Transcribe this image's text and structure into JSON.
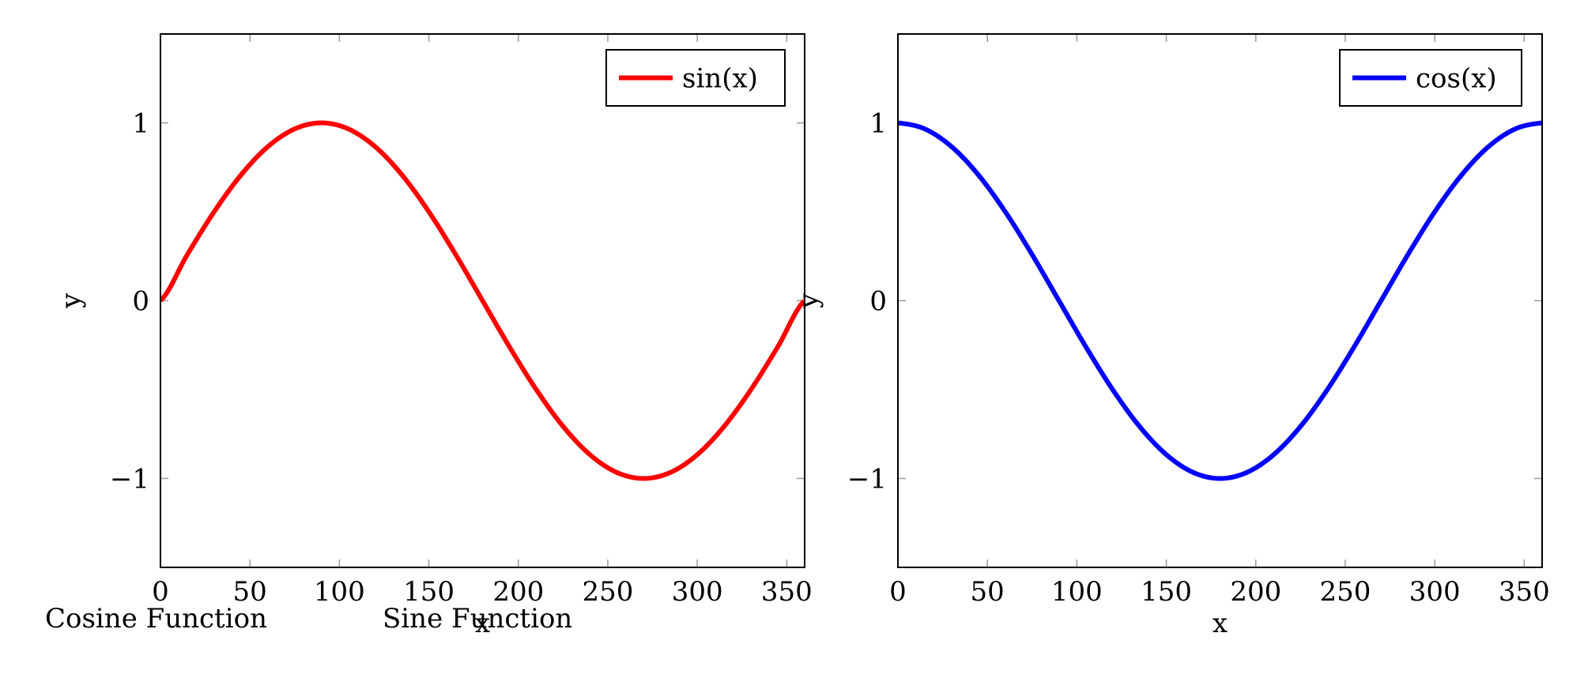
{
  "figure": {
    "captions": [
      "Cosine Function",
      "Sine Function"
    ]
  },
  "chart_data": [
    {
      "type": "line",
      "xlabel": "x",
      "ylabel": "y",
      "xlim": [
        0,
        360
      ],
      "ylim": [
        -1.5,
        1.5
      ],
      "xticks": [
        "0",
        "50",
        "100",
        "150",
        "200",
        "250",
        "300",
        "350"
      ],
      "xtick_values": [
        0,
        50,
        100,
        150,
        200,
        250,
        300,
        350
      ],
      "yticks": [
        "−1",
        "0",
        "1"
      ],
      "ytick_values": [
        -1,
        0,
        1
      ],
      "legend_position": "top-right",
      "grid": false,
      "series": [
        {
          "name": "sin(x)",
          "color": "#ff0000",
          "x": [
            0,
            15,
            30,
            45,
            60,
            75,
            90,
            105,
            120,
            135,
            150,
            165,
            180,
            195,
            210,
            225,
            240,
            255,
            270,
            285,
            300,
            315,
            330,
            345,
            360
          ],
          "y": [
            0,
            0.259,
            0.5,
            0.707,
            0.866,
            0.966,
            1,
            0.966,
            0.866,
            0.707,
            0.5,
            0.259,
            0,
            -0.259,
            -0.5,
            -0.707,
            -0.866,
            -0.966,
            -1,
            -0.966,
            -0.866,
            -0.707,
            -0.5,
            -0.259,
            0
          ]
        }
      ]
    },
    {
      "type": "line",
      "xlabel": "x",
      "ylabel": "y",
      "xlim": [
        0,
        360
      ],
      "ylim": [
        -1.5,
        1.5
      ],
      "xticks": [
        "0",
        "50",
        "100",
        "150",
        "200",
        "250",
        "300",
        "350"
      ],
      "xtick_values": [
        0,
        50,
        100,
        150,
        200,
        250,
        300,
        350
      ],
      "yticks": [
        "−1",
        "0",
        "1"
      ],
      "ytick_values": [
        -1,
        0,
        1
      ],
      "legend_position": "top-right",
      "grid": false,
      "series": [
        {
          "name": "cos(x)",
          "color": "#0000ff",
          "x": [
            0,
            15,
            30,
            45,
            60,
            75,
            90,
            105,
            120,
            135,
            150,
            165,
            180,
            195,
            210,
            225,
            240,
            255,
            270,
            285,
            300,
            315,
            330,
            345,
            360
          ],
          "y": [
            1,
            0.966,
            0.866,
            0.707,
            0.5,
            0.259,
            0,
            -0.259,
            -0.5,
            -0.707,
            -0.866,
            -0.966,
            -1,
            -0.966,
            -0.866,
            -0.707,
            -0.5,
            -0.259,
            0,
            0.259,
            0.5,
            0.707,
            0.866,
            0.966,
            1
          ]
        }
      ]
    }
  ]
}
